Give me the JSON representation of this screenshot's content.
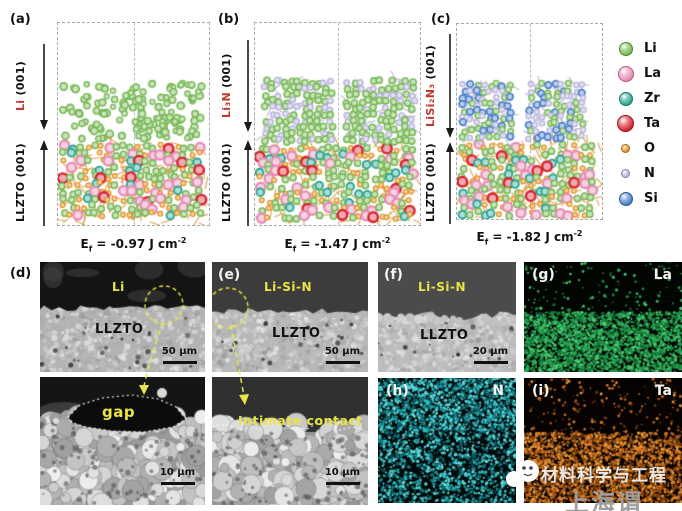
{
  "colors": {
    "annotation_red": "#c0392b",
    "annotation_yellow": "#e9e545",
    "caption": "#111111"
  },
  "legend": {
    "items": [
      {
        "symbol": "Li",
        "color": "#79b957",
        "ring": "#4c8a2f",
        "r": 7
      },
      {
        "symbol": "La",
        "color": "#e78cb4",
        "ring": "#b85a88",
        "r": 8
      },
      {
        "symbol": "Zr",
        "color": "#2ba593",
        "ring": "#16786a",
        "r": 7
      },
      {
        "symbol": "Ta",
        "color": "#d8232f",
        "ring": "#9b111d",
        "r": 8.5
      },
      {
        "symbol": "O",
        "color": "#e2901e",
        "ring": "#a96a10",
        "r": 4.5
      },
      {
        "symbol": "N",
        "color": "#b9b3de",
        "ring": "#877eba",
        "r": 4.5
      },
      {
        "symbol": "Si",
        "color": "#4b7ec8",
        "ring": "#2a57a0",
        "r": 7
      }
    ]
  },
  "top_panels": [
    {
      "label": "(a)",
      "film_red": "Li",
      "film_black": " (001)",
      "substrate": "LLZTO (001)",
      "ef_base": "E",
      "ef_sub": "f",
      "ef_rest": " = -0.97 J cm",
      "ef_sup": "-2"
    },
    {
      "label": "(b)",
      "film_red": "Li₃N",
      "film_black": " (001)",
      "substrate": "LLZTO (001)",
      "ef_base": "E",
      "ef_sub": "f",
      "ef_rest": " = -1.47 J cm",
      "ef_sup": "-2"
    },
    {
      "label": "(c)",
      "film_red": "LiSi₂N₃",
      "film_black": " (001)",
      "substrate": "LLZTO (001)",
      "ef_base": "E",
      "ef_sub": "f",
      "ef_rest": " = -1.82 J cm",
      "ef_sup": "-2"
    }
  ],
  "sem_panels": {
    "d_top": {
      "label": "(d)",
      "top_region": "Li",
      "bottom_region": "LLZTO",
      "scale": "50 μm"
    },
    "e_top": {
      "label": "(e)",
      "top_region": "Li-Si-N",
      "bottom_region": "LLZTO",
      "scale": "50 μm"
    },
    "f_top": {
      "label": "(f)",
      "top_region": "Li-Si-N",
      "bottom_region": "LLZTO",
      "scale": "20 μm"
    },
    "d_bottom": {
      "annotation": "gap",
      "scale": "10 μm"
    },
    "e_bottom": {
      "annotation": "Intimate contact",
      "scale": "10 μm"
    },
    "g": {
      "label": "(g)",
      "element": "La"
    },
    "h": {
      "label": "(h)",
      "element": "N"
    },
    "i": {
      "label": "(i)",
      "element": "Ta"
    }
  },
  "watermark": {
    "line1": "材料科学与工程",
    "line2": "上海谓"
  }
}
